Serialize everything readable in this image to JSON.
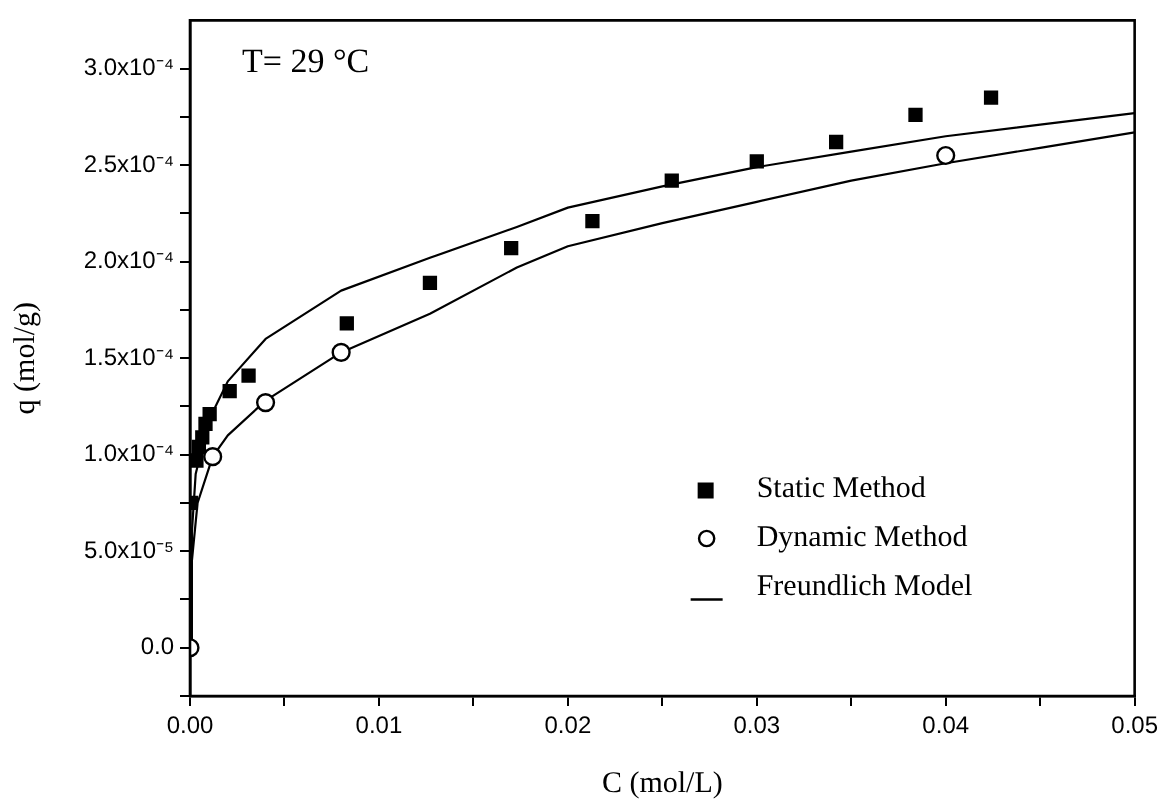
{
  "chart_data": {
    "type": "scatter",
    "xlabel": "C (mol/L)",
    "ylabel": "q (mol/g)",
    "annotations": [
      "T= 29 °C"
    ],
    "xlim": [
      0,
      0.05
    ],
    "xticks": [
      {
        "value": 0,
        "label": "0.00"
      },
      {
        "value": 0.005,
        "label": null
      },
      0.01,
      {
        "value": 0.015,
        "label": null
      },
      0.02,
      {
        "value": 0.025,
        "label": null
      },
      0.03,
      {
        "value": 0.035,
        "label": null
      },
      0.04,
      {
        "value": 0.045,
        "label": null
      },
      0.05
    ],
    "ylim": [
      -2.5e-05,
      0.000325
    ],
    "yticks": [
      {
        "value": -2.5e-05,
        "label": null
      },
      {
        "value": 0,
        "label": "0.0"
      },
      {
        "value": 2.5e-05,
        "label": null
      },
      {
        "value": 5e-05,
        "label": "5.0x10⁻⁵"
      },
      {
        "value": 7.5e-05,
        "label": null
      },
      {
        "value": 0.0001,
        "label": "1.0x10⁻⁴"
      },
      {
        "value": 0.000125,
        "label": null
      },
      {
        "value": 0.00015,
        "label": "1.5x10⁻⁴"
      },
      {
        "value": 0.000175,
        "label": null
      },
      {
        "value": 0.0002,
        "label": "2.0x10⁻⁴"
      },
      {
        "value": 0.000225,
        "label": null
      },
      {
        "value": 0.00025,
        "label": "2.5x10⁻⁴"
      },
      {
        "value": 0.000275,
        "label": null
      },
      {
        "value": 0.0003,
        "label": "3.0x10⁻⁴"
      }
    ],
    "grid": false,
    "legend": "bottom right",
    "series": [
      {
        "name": "Static Method",
        "type": "scatter",
        "marker": "square",
        "color": "#000000",
        "x": [
          5e-05,
          0.00034,
          0.00047,
          0.00065,
          0.00082,
          0.00104,
          0.0021,
          0.0031,
          0.0083,
          0.0127,
          0.017,
          0.0213,
          0.0255,
          0.03,
          0.0342,
          0.0384,
          0.0424
        ],
        "values": [
          7.5e-05,
          9.7e-05,
          0.000104,
          0.000109,
          0.000116,
          0.000121,
          0.000133,
          0.000141,
          0.000168,
          0.000189,
          0.000207,
          0.000221,
          0.000242,
          0.000252,
          0.000262,
          0.000276,
          0.000285
        ]
      },
      {
        "name": "Dynamic Method",
        "type": "scatter",
        "marker": "circle",
        "color": "#000000",
        "x": [
          0,
          0.0012,
          0.004,
          0.008,
          0.04
        ],
        "values": [
          0,
          9.9e-05,
          0.000127,
          0.000153,
          0.000255
        ]
      },
      {
        "name": "Freundlich Model",
        "type": "line",
        "marker": "none",
        "line_style": "solid",
        "color": "#000000",
        "x": [
          0,
          0.0001,
          0.0003,
          0.001,
          0.002,
          0.004,
          0.008,
          0.0127,
          0.0173,
          0.02,
          0.025,
          0.03,
          0.035,
          0.04,
          0.045,
          0.05
        ],
        "values": [
          0,
          6e-05,
          9e-05,
          0.000118,
          0.000138,
          0.00016,
          0.000185,
          0.000202,
          0.000218,
          0.000228,
          0.000239,
          0.000249,
          0.000257,
          0.000265,
          0.000271,
          0.000277
        ]
      },
      {
        "type": "line",
        "marker": "none",
        "line_style": "solid",
        "color": "#000000",
        "x": [
          0,
          0.0001,
          0.0004,
          0.0012,
          0.002,
          0.004,
          0.008,
          0.0127,
          0.0173,
          0.02,
          0.025,
          0.03,
          0.035,
          0.04,
          0.045,
          0.05
        ],
        "values": [
          0,
          4.5e-05,
          7.5e-05,
          9.9e-05,
          0.00011,
          0.000128,
          0.000153,
          0.000173,
          0.000197,
          0.000208,
          0.00022,
          0.000231,
          0.000242,
          0.000251,
          0.000259,
          0.000267
        ]
      }
    ]
  }
}
